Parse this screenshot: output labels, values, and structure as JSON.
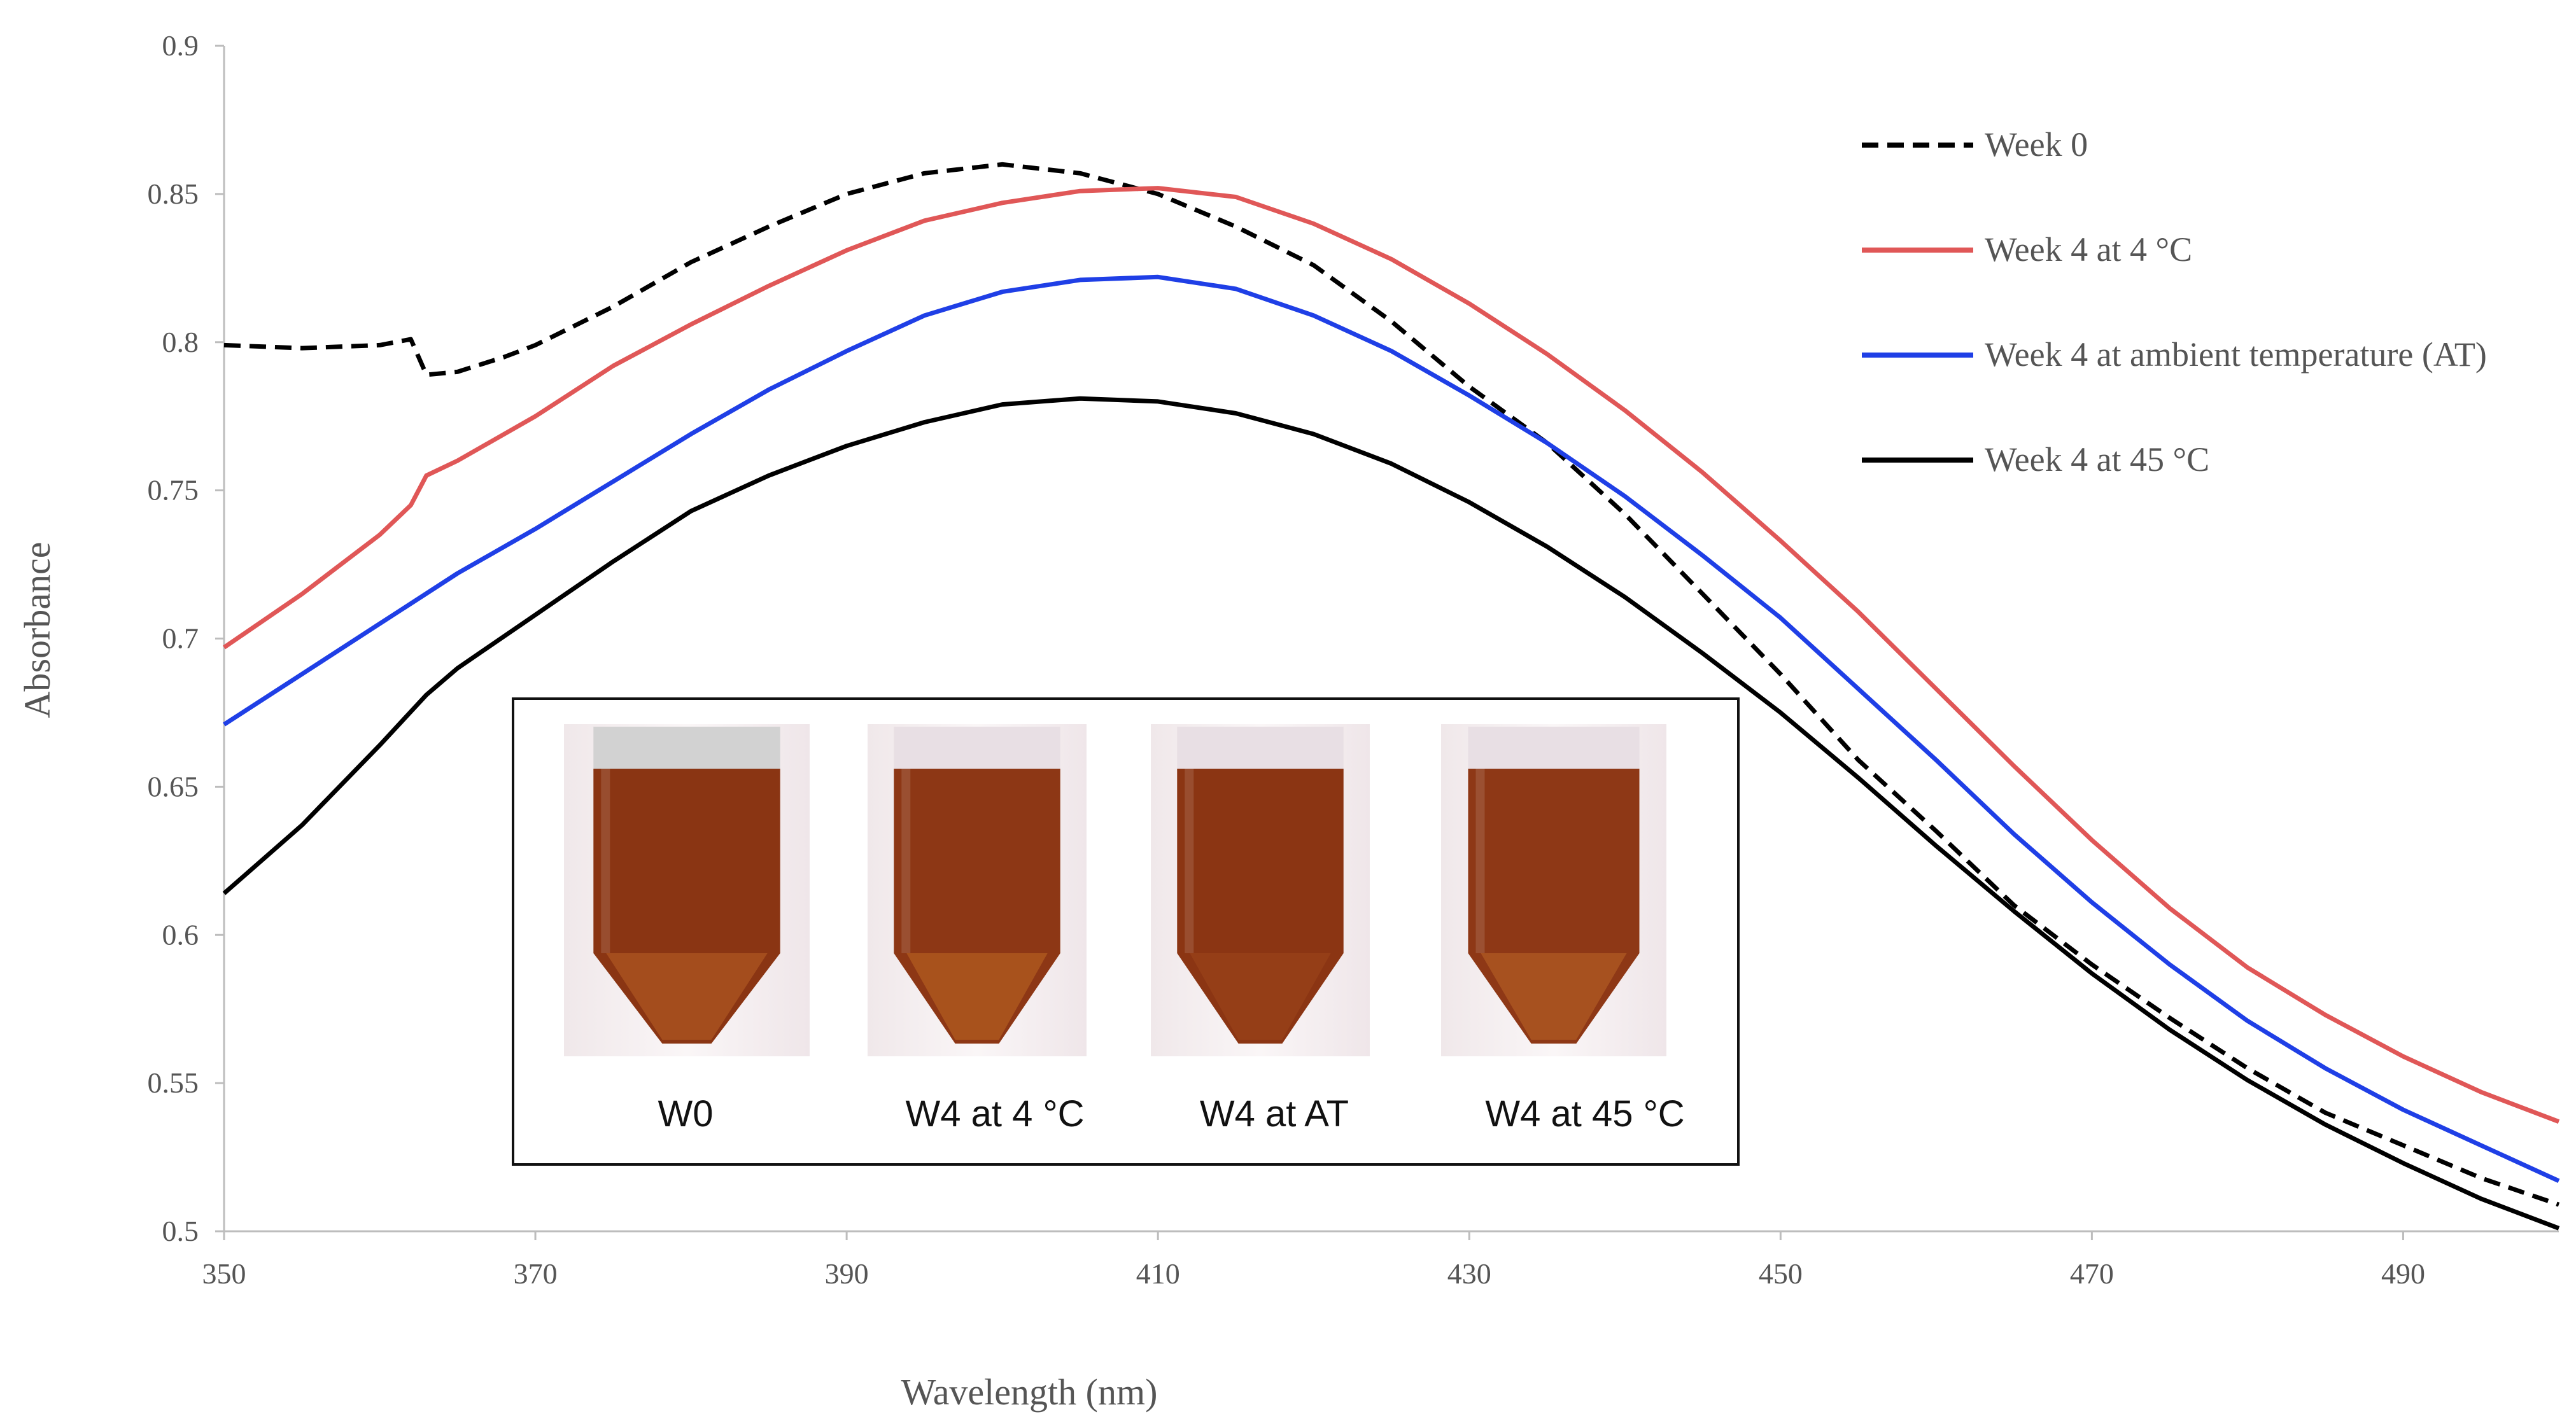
{
  "chart_data": {
    "type": "line",
    "title": "",
    "xlabel": "Wavelength  (nm)",
    "ylabel": "Absorbance",
    "xlim": [
      350,
      500
    ],
    "ylim": [
      0.5,
      0.9
    ],
    "x_ticks": [
      350,
      370,
      390,
      410,
      430,
      450,
      470,
      490
    ],
    "x_tick_labels": [
      "350",
      "370",
      "390",
      "410",
      "430",
      "450",
      "470",
      "490"
    ],
    "y_ticks": [
      0.5,
      0.55,
      0.6,
      0.65,
      0.7,
      0.75,
      0.8,
      0.85,
      0.9
    ],
    "y_tick_labels": [
      "0.5",
      "0.55",
      "0.6",
      "0.65",
      "0.7",
      "0.75",
      "0.8",
      "0.85",
      "0.9"
    ],
    "grid": false,
    "legend_position": "top-right",
    "series": [
      {
        "name": "Week 0",
        "color": "#000000",
        "style": "dashed",
        "points": [
          [
            350,
            0.799
          ],
          [
            355,
            0.798
          ],
          [
            360,
            0.799
          ],
          [
            362,
            0.801
          ],
          [
            363,
            0.789
          ],
          [
            365,
            0.79
          ],
          [
            368,
            0.795
          ],
          [
            370,
            0.799
          ],
          [
            375,
            0.812
          ],
          [
            380,
            0.827
          ],
          [
            385,
            0.839
          ],
          [
            390,
            0.85
          ],
          [
            395,
            0.857
          ],
          [
            400,
            0.86
          ],
          [
            405,
            0.857
          ],
          [
            410,
            0.85
          ],
          [
            415,
            0.839
          ],
          [
            420,
            0.826
          ],
          [
            425,
            0.807
          ],
          [
            430,
            0.785
          ],
          [
            435,
            0.766
          ],
          [
            440,
            0.742
          ],
          [
            445,
            0.715
          ],
          [
            450,
            0.688
          ],
          [
            455,
            0.659
          ],
          [
            460,
            0.635
          ],
          [
            465,
            0.61
          ],
          [
            470,
            0.59
          ],
          [
            475,
            0.572
          ],
          [
            480,
            0.555
          ],
          [
            485,
            0.54
          ],
          [
            490,
            0.529
          ],
          [
            495,
            0.518
          ],
          [
            500,
            0.509
          ]
        ]
      },
      {
        "name": "Week 4 at 4 °C",
        "color": "#e05757",
        "style": "solid",
        "points": [
          [
            350,
            0.697
          ],
          [
            355,
            0.715
          ],
          [
            360,
            0.735
          ],
          [
            362,
            0.745
          ],
          [
            363,
            0.755
          ],
          [
            365,
            0.76
          ],
          [
            370,
            0.775
          ],
          [
            375,
            0.792
          ],
          [
            380,
            0.806
          ],
          [
            385,
            0.819
          ],
          [
            390,
            0.831
          ],
          [
            395,
            0.841
          ],
          [
            400,
            0.847
          ],
          [
            405,
            0.851
          ],
          [
            410,
            0.852
          ],
          [
            415,
            0.849
          ],
          [
            420,
            0.84
          ],
          [
            425,
            0.828
          ],
          [
            430,
            0.813
          ],
          [
            435,
            0.796
          ],
          [
            440,
            0.777
          ],
          [
            445,
            0.756
          ],
          [
            450,
            0.733
          ],
          [
            455,
            0.709
          ],
          [
            460,
            0.683
          ],
          [
            465,
            0.657
          ],
          [
            470,
            0.632
          ],
          [
            475,
            0.609
          ],
          [
            480,
            0.589
          ],
          [
            485,
            0.573
          ],
          [
            490,
            0.559
          ],
          [
            495,
            0.547
          ],
          [
            500,
            0.537
          ]
        ]
      },
      {
        "name": "Week 4 at ambient temperature (AT)",
        "color": "#1f3fe6",
        "style": "solid",
        "points": [
          [
            350,
            0.671
          ],
          [
            355,
            0.688
          ],
          [
            360,
            0.705
          ],
          [
            365,
            0.722
          ],
          [
            370,
            0.737
          ],
          [
            375,
            0.753
          ],
          [
            380,
            0.769
          ],
          [
            385,
            0.784
          ],
          [
            390,
            0.797
          ],
          [
            395,
            0.809
          ],
          [
            400,
            0.817
          ],
          [
            405,
            0.821
          ],
          [
            410,
            0.822
          ],
          [
            415,
            0.818
          ],
          [
            420,
            0.809
          ],
          [
            425,
            0.797
          ],
          [
            430,
            0.782
          ],
          [
            435,
            0.766
          ],
          [
            440,
            0.748
          ],
          [
            445,
            0.728
          ],
          [
            450,
            0.707
          ],
          [
            455,
            0.683
          ],
          [
            460,
            0.659
          ],
          [
            465,
            0.634
          ],
          [
            470,
            0.611
          ],
          [
            475,
            0.59
          ],
          [
            480,
            0.571
          ],
          [
            485,
            0.555
          ],
          [
            490,
            0.541
          ],
          [
            495,
            0.529
          ],
          [
            500,
            0.517
          ]
        ]
      },
      {
        "name": "Week 4 at 45 °C",
        "color": "#000000",
        "style": "solid",
        "points": [
          [
            350,
            0.614
          ],
          [
            355,
            0.637
          ],
          [
            360,
            0.664
          ],
          [
            363,
            0.681
          ],
          [
            365,
            0.69
          ],
          [
            370,
            0.708
          ],
          [
            375,
            0.726
          ],
          [
            380,
            0.743
          ],
          [
            385,
            0.755
          ],
          [
            390,
            0.765
          ],
          [
            395,
            0.773
          ],
          [
            400,
            0.779
          ],
          [
            405,
            0.781
          ],
          [
            410,
            0.78
          ],
          [
            415,
            0.776
          ],
          [
            420,
            0.769
          ],
          [
            425,
            0.759
          ],
          [
            430,
            0.746
          ],
          [
            435,
            0.731
          ],
          [
            440,
            0.714
          ],
          [
            445,
            0.695
          ],
          [
            450,
            0.675
          ],
          [
            455,
            0.653
          ],
          [
            460,
            0.63
          ],
          [
            465,
            0.608
          ],
          [
            470,
            0.587
          ],
          [
            475,
            0.568
          ],
          [
            480,
            0.551
          ],
          [
            485,
            0.536
          ],
          [
            490,
            0.523
          ],
          [
            495,
            0.511
          ],
          [
            500,
            0.501
          ]
        ]
      }
    ],
    "inset": {
      "vials": [
        {
          "label": "W0",
          "cap_color": "#d2d2d2",
          "liquid_color": "#8a3513",
          "tip_color": "#c46a2b"
        },
        {
          "label": "W4 at 4 °C",
          "cap_color": "#e8dfe4",
          "liquid_color": "#8d3715",
          "tip_color": "#c97326"
        },
        {
          "label": "W4 at AT",
          "cap_color": "#e8dfe4",
          "liquid_color": "#8b3513",
          "tip_color": "#a24a1c"
        },
        {
          "label": "W4 at 45 °C",
          "cap_color": "#e8dfe4",
          "liquid_color": "#8e3816",
          "tip_color": "#c6722a"
        }
      ]
    }
  }
}
